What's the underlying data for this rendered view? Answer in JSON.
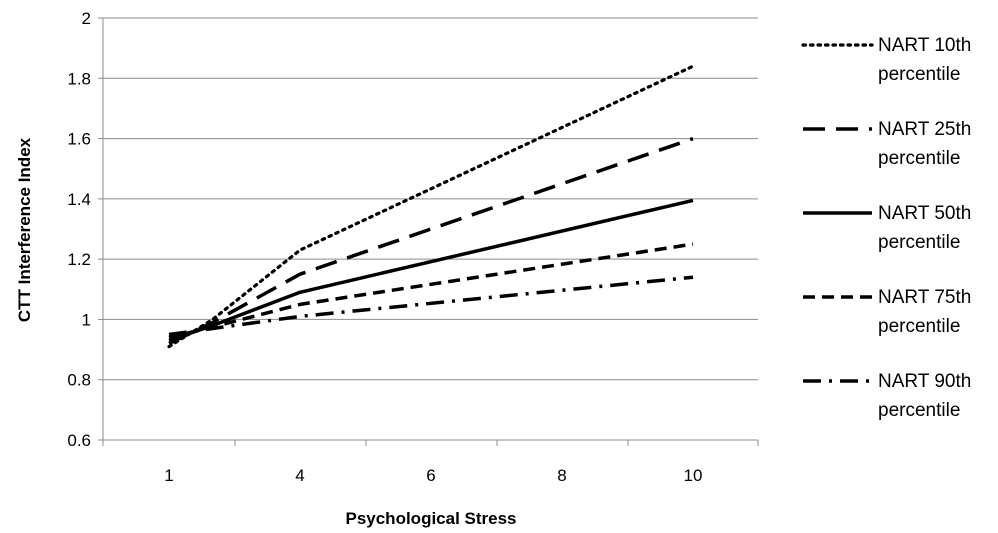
{
  "chart_data": {
    "type": "line",
    "xlabel": "Psychological Stress",
    "ylabel": "CTT Interference Index",
    "x_ticks": [
      1,
      4,
      6,
      8,
      10
    ],
    "y_ticks": [
      0.6,
      0.8,
      1,
      1.2,
      1.4,
      1.6,
      1.8,
      2
    ],
    "x_tick_labels": [
      "1",
      "4",
      "6",
      "8",
      "10"
    ],
    "y_tick_labels": [
      "0.6",
      "0.8",
      "1",
      "1.2",
      "1.4",
      "1.6",
      "1.8",
      "2"
    ],
    "ylim": [
      0.6,
      2
    ],
    "grid": "horizontal",
    "legend_position": "right",
    "series": [
      {
        "legend_lines": [
          "NART 10th",
          "percentile"
        ],
        "style": "dotted",
        "points": [
          [
            1,
            0.91
          ],
          [
            2,
            1.0
          ],
          [
            4,
            1.23
          ],
          [
            10,
            1.84
          ]
        ]
      },
      {
        "legend_lines": [
          "NART 25th",
          "percentile"
        ],
        "style": "dashed",
        "points": [
          [
            1,
            0.92
          ],
          [
            2,
            0.99
          ],
          [
            4,
            1.15
          ],
          [
            10,
            1.6
          ]
        ]
      },
      {
        "legend_lines": [
          "NART 50th",
          "percentile"
        ],
        "style": "solid",
        "points": [
          [
            1,
            0.93
          ],
          [
            2,
            0.98
          ],
          [
            4,
            1.09
          ],
          [
            10,
            1.395
          ]
        ]
      },
      {
        "legend_lines": [
          "NART 75th",
          "percentile"
        ],
        "style": "short-dash",
        "points": [
          [
            1,
            0.94
          ],
          [
            2,
            0.975
          ],
          [
            4,
            1.05
          ],
          [
            10,
            1.25
          ]
        ]
      },
      {
        "legend_lines": [
          "NART 90th",
          "percentile"
        ],
        "style": "dash-dot",
        "points": [
          [
            1,
            0.95
          ],
          [
            2,
            0.97
          ],
          [
            4,
            1.01
          ],
          [
            10,
            1.14
          ]
        ]
      }
    ]
  }
}
